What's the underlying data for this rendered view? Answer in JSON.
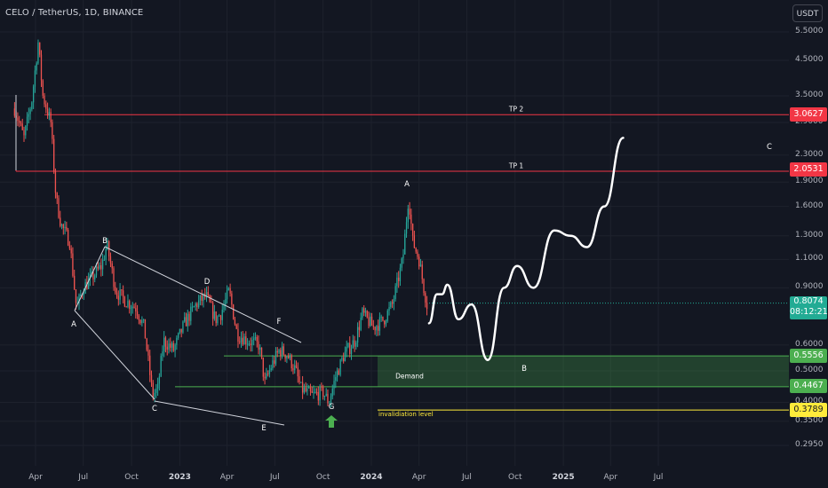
{
  "header": {
    "title": "CELO / TetherUS, 1D, BINANCE"
  },
  "price_axis": {
    "currency": "USDT",
    "ticks": [
      "5.5000",
      "4.5000",
      "3.5000",
      "2.9000",
      "2.3000",
      "1.9000",
      "1.6000",
      "1.3000",
      "1.1000",
      "0.9000",
      "0.6000",
      "0.5000",
      "0.4000",
      "0.3500",
      "0.2950"
    ]
  },
  "time_axis": {
    "ticks": [
      {
        "label": "Apr",
        "bold": false
      },
      {
        "label": "Jul",
        "bold": false
      },
      {
        "label": "Oct",
        "bold": false
      },
      {
        "label": "2023",
        "bold": true
      },
      {
        "label": "Apr",
        "bold": false
      },
      {
        "label": "Jul",
        "bold": false
      },
      {
        "label": "Oct",
        "bold": false
      },
      {
        "label": "2024",
        "bold": true
      },
      {
        "label": "Apr",
        "bold": false
      },
      {
        "label": "Jul",
        "bold": false
      },
      {
        "label": "Oct",
        "bold": false
      },
      {
        "label": "2025",
        "bold": true
      },
      {
        "label": "Apr",
        "bold": false
      },
      {
        "label": "Jul",
        "bold": false
      }
    ]
  },
  "price_labels": {
    "tp2": {
      "value": "3.0627",
      "color": "#f23645",
      "text_color": "#ffffff"
    },
    "tp1": {
      "value": "2.0531",
      "color": "#f23645",
      "text_color": "#ffffff"
    },
    "demand_top": {
      "value": "0.5556",
      "color": "#4caf50",
      "text_color": "#ffffff"
    },
    "demand_bottom": {
      "value": "0.4467",
      "color": "#4caf50",
      "text_color": "#ffffff"
    },
    "invalidation": {
      "value": "0.3789",
      "color": "#ffeb3b",
      "text_color": "#131722"
    }
  },
  "current_price": {
    "value": "0.8074",
    "countdown": "08:12:21",
    "color": "#22ab94"
  },
  "annotations": {
    "tp2": "TP 2",
    "tp1": "TP 1",
    "demand": "Demand",
    "invalidation": "invalidiation level",
    "waves": {
      "A1": "A",
      "B1": "B",
      "C1": "C",
      "D1": "D",
      "E1": "E",
      "F1": "F",
      "G1": "G",
      "A2": "A",
      "B2": "B",
      "C2": "C"
    }
  },
  "chart_data": {
    "type": "candlestick",
    "title": "CELO / TetherUS, 1D, BINANCE",
    "y_scale": "log",
    "ylim": [
      0.27,
      6.2
    ],
    "x_range": [
      "2022-02-15",
      "2025-11-20"
    ],
    "series": [
      {
        "name": "CELO / TetherUS",
        "points": [
          [
            "2022-02-20",
            3.2
          ],
          [
            "2022-03-10",
            2.6
          ],
          [
            "2022-03-25",
            3.4
          ],
          [
            "2022-04-06",
            5.1
          ],
          [
            "2022-04-15",
            3.5
          ],
          [
            "2022-04-30",
            2.9
          ],
          [
            "2022-05-10",
            1.7
          ],
          [
            "2022-05-20",
            1.4
          ],
          [
            "2022-06-05",
            1.25
          ],
          [
            "2022-06-18",
            0.78
          ],
          [
            "2022-07-01",
            0.9
          ],
          [
            "2022-07-20",
            0.98
          ],
          [
            "2022-08-05",
            1.05
          ],
          [
            "2022-08-15",
            1.22
          ],
          [
            "2022-09-01",
            0.88
          ],
          [
            "2022-09-20",
            0.82
          ],
          [
            "2022-10-10",
            0.78
          ],
          [
            "2022-10-25",
            0.68
          ],
          [
            "2022-11-10",
            0.42
          ],
          [
            "2022-11-20",
            0.44
          ],
          [
            "2022-12-01",
            0.62
          ],
          [
            "2022-12-20",
            0.58
          ],
          [
            "2023-01-10",
            0.7
          ],
          [
            "2023-02-01",
            0.8
          ],
          [
            "2023-02-20",
            0.85
          ],
          [
            "2023-03-10",
            0.72
          ],
          [
            "2023-03-20",
            0.75
          ],
          [
            "2023-04-05",
            0.88
          ],
          [
            "2023-04-20",
            0.65
          ],
          [
            "2023-05-10",
            0.62
          ],
          [
            "2023-06-01",
            0.6
          ],
          [
            "2023-06-12",
            0.46
          ],
          [
            "2023-06-25",
            0.52
          ],
          [
            "2023-07-10",
            0.58
          ],
          [
            "2023-07-25",
            0.56
          ],
          [
            "2023-08-10",
            0.5
          ],
          [
            "2023-08-20",
            0.44
          ],
          [
            "2023-09-10",
            0.42
          ],
          [
            "2023-10-01",
            0.43
          ],
          [
            "2023-10-12",
            0.4
          ],
          [
            "2023-10-25",
            0.48
          ],
          [
            "2023-11-10",
            0.56
          ],
          [
            "2023-12-01",
            0.62
          ],
          [
            "2023-12-15",
            0.75
          ],
          [
            "2024-01-05",
            0.68
          ],
          [
            "2024-01-25",
            0.72
          ],
          [
            "2024-02-10",
            0.8
          ],
          [
            "2024-03-01",
            1.1
          ],
          [
            "2024-03-12",
            1.72
          ],
          [
            "2024-03-20",
            1.25
          ],
          [
            "2024-04-01",
            1.1
          ],
          [
            "2024-04-10",
            0.9
          ],
          [
            "2024-04-16",
            0.8
          ]
        ]
      },
      {
        "name": "Projected path",
        "points": [
          [
            "2024-04-20",
            0.7
          ],
          [
            "2024-05-05",
            0.86
          ],
          [
            "2024-05-15",
            0.86
          ],
          [
            "2024-05-25",
            0.92
          ],
          [
            "2024-06-15",
            0.72
          ],
          [
            "2024-07-10",
            0.8
          ],
          [
            "2024-08-10",
            0.54
          ],
          [
            "2024-09-10",
            0.9
          ],
          [
            "2024-10-05",
            1.05
          ],
          [
            "2024-11-05",
            0.9
          ],
          [
            "2024-12-15",
            1.35
          ],
          [
            "2025-01-15",
            1.3
          ],
          [
            "2025-02-15",
            1.2
          ],
          [
            "2025-03-20",
            1.6
          ],
          [
            "2025-04-25",
            2.6
          ]
        ]
      }
    ],
    "levels": [
      {
        "name": "TP 2",
        "value": 3.0627
      },
      {
        "name": "TP 1",
        "value": 2.0531
      },
      {
        "name": "Demand top",
        "value": 0.5556
      },
      {
        "name": "Demand bottom",
        "value": 0.4467
      },
      {
        "name": "invalidiation level",
        "value": 0.3789
      }
    ]
  }
}
